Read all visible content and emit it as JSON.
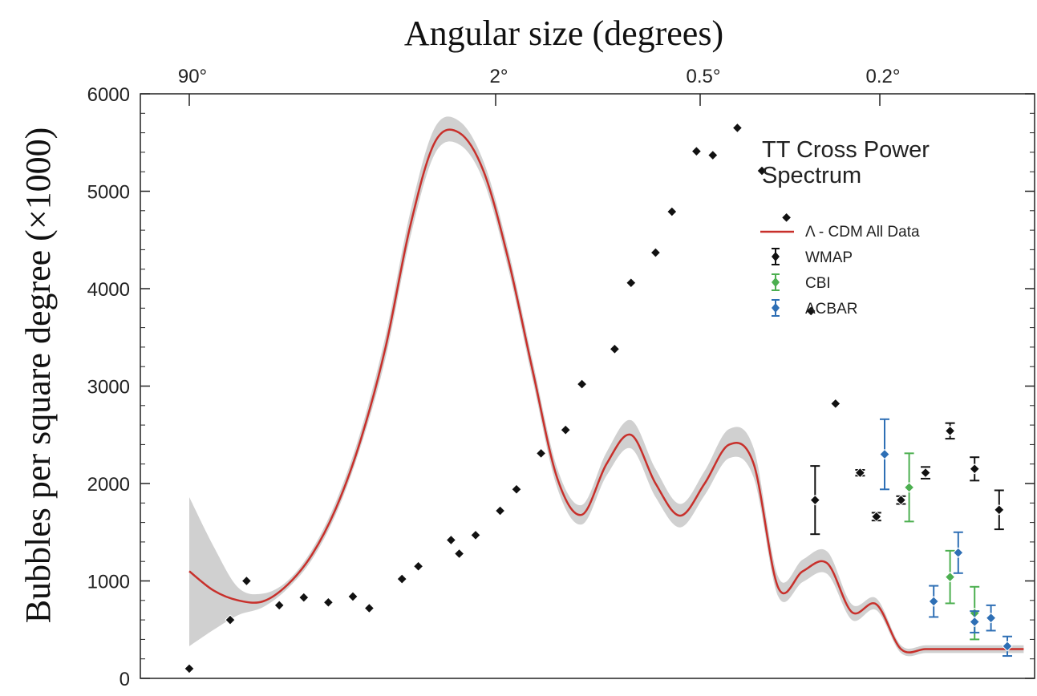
{
  "chart_data": {
    "type": "scatter",
    "title": "",
    "xlabel_top": "Angular size (degrees)",
    "ylabel": "Bubbles per square degree (×1000)",
    "top_ticks": [
      "90°",
      "2°",
      "0.5°",
      "0.2°"
    ],
    "y_ticks": [
      0,
      1000,
      2000,
      3000,
      4000,
      5000,
      6000
    ],
    "ylim": [
      0,
      6000
    ],
    "legend_position": "top-right",
    "legend": {
      "heading_line1": "TT Cross Power",
      "heading_line2": "Spectrum",
      "model_label": "Λ - CDM All Data",
      "entries": [
        "WMAP",
        "CBI",
        "ACBAR"
      ]
    },
    "colors": {
      "model": "#c8302b",
      "band": "#d0d0d0",
      "WMAP": "#111111",
      "CBI": "#4caf50",
      "ACBAR": "#2e6fb5"
    },
    "model_curve": {
      "x": [
        0.0,
        0.03,
        0.06,
        0.09,
        0.12,
        0.15,
        0.18,
        0.21,
        0.24,
        0.27,
        0.3,
        0.33,
        0.36,
        0.39,
        0.42,
        0.45,
        0.48,
        0.51,
        0.54,
        0.57,
        0.6,
        0.63,
        0.66,
        0.69,
        0.72,
        0.75,
        0.78,
        0.81,
        0.84,
        0.87,
        0.9,
        0.93,
        0.96,
        0.99,
        1.02
      ],
      "y": [
        1100,
        900,
        800,
        790,
        960,
        1270,
        1760,
        2460,
        3400,
        4640,
        5500,
        5600,
        5200,
        4300,
        3150,
        2050,
        1680,
        2200,
        2500,
        2000,
        1670,
        2000,
        2400,
        2200,
        930,
        1100,
        1180,
        680,
        760,
        300,
        300,
        300,
        300,
        300,
        300
      ]
    },
    "band_upper": [
      1860,
      1350,
      930,
      870,
      1000,
      1320,
      1830,
      2550,
      3520,
      4780,
      5650,
      5720,
      5300,
      4400,
      3250,
      2150,
      1780,
      2320,
      2650,
      2150,
      1790,
      2130,
      2560,
      2360,
      1040,
      1220,
      1300,
      760,
      820,
      340,
      340,
      340,
      340,
      340,
      340
    ],
    "band_lower": [
      330,
      500,
      650,
      730,
      920,
      1220,
      1700,
      2390,
      3290,
      4520,
      5380,
      5480,
      5100,
      4200,
      3050,
      1950,
      1580,
      2080,
      2360,
      1860,
      1550,
      1880,
      2260,
      2060,
      840,
      990,
      1070,
      600,
      700,
      260,
      260,
      260,
      260,
      260,
      260
    ],
    "series": [
      {
        "name": "WMAP",
        "x": [
          0.0,
          0.05,
          0.07,
          0.11,
          0.14,
          0.17,
          0.2,
          0.22,
          0.26,
          0.28,
          0.32,
          0.33,
          0.35,
          0.38,
          0.4,
          0.43,
          0.46,
          0.48,
          0.52,
          0.54,
          0.57,
          0.59,
          0.62,
          0.64,
          0.67,
          0.7,
          0.73,
          0.76,
          0.79,
          0.82,
          0.84,
          0.87,
          0.9,
          0.93,
          0.96,
          0.99
        ],
        "y": [
          100,
          600,
          1000,
          750,
          830,
          780,
          840,
          720,
          1020,
          1150,
          1420,
          1280,
          1470,
          1720,
          1940,
          2310,
          2550,
          3020,
          3380,
          4060,
          4370,
          4790,
          5410,
          5370,
          5650,
          5210,
          4730,
          3770,
          2820,
          2110,
          1660,
          1830,
          2110,
          2540,
          2150,
          1730
        ],
        "err": [
          0,
          0,
          0,
          0,
          0,
          0,
          0,
          0,
          0,
          0,
          0,
          0,
          0,
          0,
          0,
          0,
          0,
          0,
          0,
          0,
          0,
          0,
          0,
          0,
          0,
          0,
          0,
          0,
          0,
          30,
          40,
          40,
          60,
          80,
          120,
          200
        ]
      },
      {
        "name": "CBI",
        "x": [
          0.88,
          0.93,
          0.96
        ],
        "y": [
          1960,
          1040,
          670
        ],
        "err": [
          350,
          270,
          270
        ]
      },
      {
        "name": "ACBAR",
        "x": [
          0.85,
          0.91,
          0.94,
          0.96,
          0.98,
          1.0
        ],
        "y": [
          2300,
          790,
          1290,
          580,
          620,
          330
        ],
        "err": [
          360,
          160,
          210,
          110,
          130,
          100
        ]
      }
    ],
    "extra_wmap_point": {
      "x": 0.765,
      "y": 1830,
      "err": 350
    }
  }
}
